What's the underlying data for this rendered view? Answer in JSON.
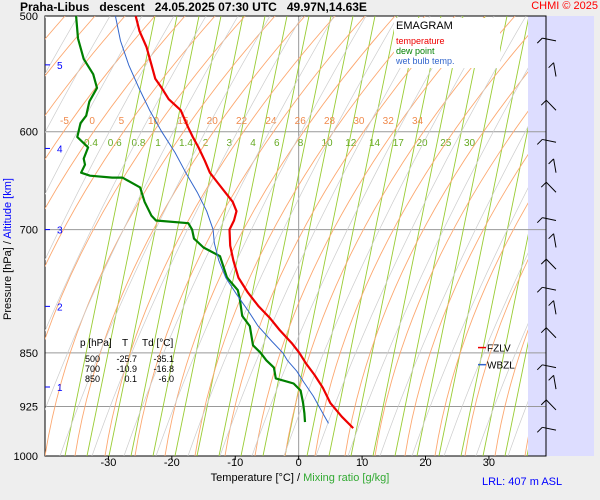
{
  "header": {
    "station": "Praha-Libus",
    "mode": "descent",
    "datetime": "24.05.2025 07:30 UTC",
    "coords": "49.97N,14.63E",
    "copyright": "CHMI © 2025"
  },
  "legend": {
    "title": "EMAGRAM",
    "temperature": "temperature",
    "dew_point": "dew point",
    "wet_bulb": "wet bulb temp."
  },
  "axes": {
    "x_label_temp": "Temperature [°C]",
    "x_label_sep": "/",
    "x_label_mix": "Mixing ratio [g/kg]",
    "y_label_p": "Pressure [hPa]",
    "y_label_sep": "/",
    "y_label_alt": "Altitude [km]"
  },
  "footer": {
    "lrl": "LRL: 407 m ASL"
  },
  "table": {
    "headers": [
      "p [hPa]",
      "T",
      "Td [°C]"
    ],
    "rows": [
      [
        "500",
        "-25.7",
        "-35.1"
      ],
      [
        "700",
        "-10.9",
        "-16.8"
      ],
      [
        "850",
        "0.1",
        "-6.0"
      ]
    ]
  },
  "colors": {
    "temperature": "#ee0000",
    "dew_point": "#008000",
    "wet_bulb": "#3366cc",
    "plot_bg": "#ffffff",
    "wind_bg": "#ddddff",
    "dry_adiabat": "#fca870",
    "moist_adiabat": "#cccccc",
    "mixing_ratio": "#99cc33",
    "copyright": "#ff0000",
    "altitude": "#0000ff"
  },
  "chart_data": {
    "type": "line",
    "x_unit": "°C",
    "y_unit": "hPa",
    "xlim": [
      -40,
      39
    ],
    "ylim": [
      1000,
      500
    ],
    "y_scale": "log",
    "x_ticks": [
      -30,
      -20,
      -10,
      0,
      10,
      20,
      30
    ],
    "y_ticks": [
      500,
      600,
      700,
      850,
      925,
      1000
    ],
    "altitude_ticks_km": [
      1,
      2,
      3,
      4,
      5
    ],
    "altitude_ticks_hpa": [
      897,
      790,
      700,
      616,
      540
    ],
    "mixing_ratio_labels": [
      "0.4",
      "0.6",
      "0.8",
      "1",
      "1.4",
      "2",
      "3",
      "4",
      "6",
      "8",
      "10",
      "12",
      "14",
      "17",
      "20",
      "25",
      "30"
    ],
    "dry_adiabat_labels": [
      "-5",
      "0",
      "5",
      "10",
      "15",
      "20",
      "22",
      "24",
      "26",
      "28",
      "30",
      "32",
      "34"
    ],
    "series": [
      {
        "name": "temperature",
        "points": [
          [
            8.6,
            957
          ],
          [
            6.8,
            940
          ],
          [
            5.0,
            920
          ],
          [
            3.8,
            898
          ],
          [
            2.5,
            880
          ],
          [
            1.2,
            865
          ],
          [
            0.1,
            850
          ],
          [
            -1.0,
            838
          ],
          [
            -3.0,
            820
          ],
          [
            -4.5,
            805
          ],
          [
            -6.3,
            790
          ],
          [
            -8.0,
            773
          ],
          [
            -9.5,
            755
          ],
          [
            -10.3,
            735
          ],
          [
            -10.8,
            718
          ],
          [
            -10.9,
            700
          ],
          [
            -10.2,
            690
          ],
          [
            -9.8,
            680
          ],
          [
            -10.4,
            670
          ],
          [
            -11.6,
            660
          ],
          [
            -12.8,
            650
          ],
          [
            -14.0,
            640
          ],
          [
            -14.8,
            628
          ],
          [
            -15.8,
            615
          ],
          [
            -16.7,
            605
          ],
          [
            -17.5,
            595
          ],
          [
            -18.6,
            580
          ],
          [
            -20.5,
            570
          ],
          [
            -21.6,
            560
          ],
          [
            -22.6,
            552
          ],
          [
            -23.2,
            540
          ],
          [
            -24.0,
            525
          ],
          [
            -25.1,
            512
          ],
          [
            -25.7,
            500
          ]
        ]
      },
      {
        "name": "dew point",
        "points": [
          [
            1.0,
            948
          ],
          [
            0.9,
            935
          ],
          [
            0.7,
            920
          ],
          [
            0.3,
            902
          ],
          [
            -0.8,
            892
          ],
          [
            -3.6,
            885
          ],
          [
            -3.9,
            870
          ],
          [
            -5.1,
            860
          ],
          [
            -6.0,
            850
          ],
          [
            -7.2,
            840
          ],
          [
            -7.7,
            815
          ],
          [
            -8.9,
            802
          ],
          [
            -9.3,
            780
          ],
          [
            -9.6,
            770
          ],
          [
            -11.3,
            755
          ],
          [
            -12.4,
            730
          ],
          [
            -15.0,
            720
          ],
          [
            -16.5,
            710
          ],
          [
            -16.8,
            700
          ],
          [
            -17.4,
            693
          ],
          [
            -22.5,
            690
          ],
          [
            -23.2,
            685
          ],
          [
            -24.3,
            670
          ],
          [
            -25.0,
            655
          ],
          [
            -27.8,
            645
          ],
          [
            -29.4,
            645
          ],
          [
            -32.9,
            643
          ],
          [
            -34.3,
            640
          ],
          [
            -33.7,
            632
          ],
          [
            -33.9,
            626
          ],
          [
            -33.2,
            615
          ],
          [
            -34.9,
            605
          ],
          [
            -34.4,
            592
          ],
          [
            -33.5,
            585
          ],
          [
            -33.0,
            572
          ],
          [
            -31.8,
            560
          ],
          [
            -32.4,
            548
          ],
          [
            -33.9,
            535
          ],
          [
            -34.8,
            518
          ],
          [
            -35.1,
            500
          ]
        ]
      },
      {
        "name": "wet bulb temp.",
        "points": [
          [
            4.7,
            950
          ],
          [
            3.5,
            930
          ],
          [
            2.3,
            910
          ],
          [
            0.8,
            890
          ],
          [
            -0.3,
            875
          ],
          [
            -1.8,
            860
          ],
          [
            -2.5,
            850
          ],
          [
            -4.2,
            835
          ],
          [
            -6.4,
            815
          ],
          [
            -8.0,
            795
          ],
          [
            -9.8,
            775
          ],
          [
            -11.5,
            755
          ],
          [
            -12.6,
            735
          ],
          [
            -13.3,
            715
          ],
          [
            -13.5,
            700
          ],
          [
            -14.5,
            680
          ],
          [
            -16.0,
            660
          ],
          [
            -17.8,
            640
          ],
          [
            -19.5,
            620
          ],
          [
            -21.6,
            600
          ],
          [
            -23.5,
            580
          ],
          [
            -25.2,
            560
          ],
          [
            -26.8,
            540
          ],
          [
            -28.1,
            520
          ],
          [
            -28.9,
            500
          ]
        ]
      }
    ],
    "wind_levels_hpa": [
      960,
      930,
      900,
      870,
      830,
      800,
      770,
      745,
      720,
      690,
      660,
      640,
      610,
      580,
      550,
      520
    ]
  }
}
